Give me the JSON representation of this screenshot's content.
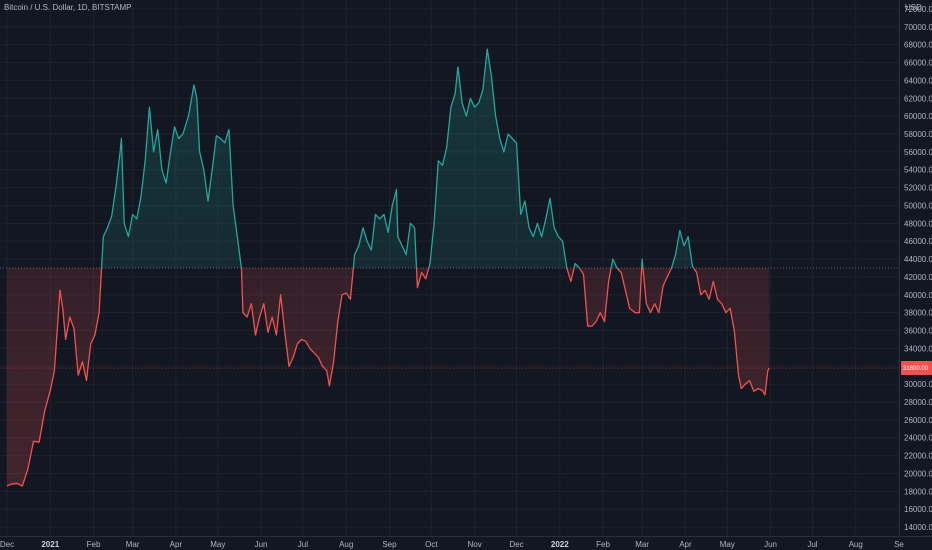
{
  "header": {
    "title": "Bitcoin / U.S. Dollar, 1D, BITSTAMP",
    "currency": "USD"
  },
  "colors": {
    "background": "#131722",
    "above": "#26a69a",
    "below": "#ef5350",
    "grid": "#1e222d",
    "axis_text": "#b2b5be"
  },
  "chart_data": {
    "type": "line",
    "y_axis": {
      "min": 13000,
      "max": 73000,
      "ticks": [
        14000,
        16000,
        18000,
        20000,
        22000,
        24000,
        26000,
        28000,
        30000,
        32000,
        34000,
        36000,
        38000,
        40000,
        42000,
        44000,
        46000,
        48000,
        50000,
        52000,
        54000,
        56000,
        58000,
        60000,
        62000,
        64000,
        66000,
        68000,
        70000,
        72000
      ],
      "tick_labels": [
        "14000.00",
        "16000.00",
        "18000.00",
        "20000.00",
        "22000.00",
        "24000.00",
        "26000.00",
        "28000.00",
        "30000.00",
        "32000.00",
        "34000.00",
        "36000.00",
        "38000.00",
        "40000.00",
        "42000.00",
        "44000.00",
        "46000.00",
        "48000.00",
        "50000.00",
        "52000.00",
        "54000.00",
        "56000.00",
        "58000.00",
        "60000.00",
        "62000.00",
        "64000.00",
        "66000.00",
        "68000.00",
        "70000.00",
        "72000.00"
      ]
    },
    "x_axis": {
      "labels": [
        {
          "text": "Dec",
          "date": "2020-12-01",
          "bold": false
        },
        {
          "text": "2021",
          "date": "2021-01-01",
          "bold": true
        },
        {
          "text": "Feb",
          "date": "2021-02-01",
          "bold": false
        },
        {
          "text": "Mar",
          "date": "2021-03-01",
          "bold": false
        },
        {
          "text": "Apr",
          "date": "2021-04-01",
          "bold": false
        },
        {
          "text": "May",
          "date": "2021-05-01",
          "bold": false
        },
        {
          "text": "Jun",
          "date": "2021-06-01",
          "bold": false
        },
        {
          "text": "Jul",
          "date": "2021-07-01",
          "bold": false
        },
        {
          "text": "Aug",
          "date": "2021-08-01",
          "bold": false
        },
        {
          "text": "Sep",
          "date": "2021-09-01",
          "bold": false
        },
        {
          "text": "Oct",
          "date": "2021-10-01",
          "bold": false
        },
        {
          "text": "Nov",
          "date": "2021-11-01",
          "bold": false
        },
        {
          "text": "Dec",
          "date": "2021-12-01",
          "bold": false
        },
        {
          "text": "2022",
          "date": "2022-01-01",
          "bold": true
        },
        {
          "text": "Feb",
          "date": "2022-02-01",
          "bold": false
        },
        {
          "text": "Mar",
          "date": "2022-03-01",
          "bold": false
        },
        {
          "text": "Apr",
          "date": "2022-04-01",
          "bold": false
        },
        {
          "text": "May",
          "date": "2022-05-01",
          "bold": false
        },
        {
          "text": "Jun",
          "date": "2022-06-01",
          "bold": false
        },
        {
          "text": "Jul",
          "date": "2022-07-01",
          "bold": false
        },
        {
          "text": "Aug",
          "date": "2022-08-01",
          "bold": false
        },
        {
          "text": "Se",
          "date": "2022-09-01",
          "bold": false
        }
      ]
    },
    "baseline": 43000,
    "last_price": 31800,
    "series": [
      {
        "points": [
          [
            "2020-12-01",
            18600
          ],
          [
            "2020-12-04",
            18800
          ],
          [
            "2020-12-08",
            18900
          ],
          [
            "2020-12-12",
            18600
          ],
          [
            "2020-12-16",
            20500
          ],
          [
            "2020-12-20",
            23600
          ],
          [
            "2020-12-24",
            23500
          ],
          [
            "2020-12-28",
            27000
          ],
          [
            "2021-01-01",
            29300
          ],
          [
            "2021-01-04",
            31500
          ],
          [
            "2021-01-08",
            40500
          ],
          [
            "2021-01-10",
            38400
          ],
          [
            "2021-01-12",
            35000
          ],
          [
            "2021-01-15",
            37500
          ],
          [
            "2021-01-18",
            36200
          ],
          [
            "2021-01-21",
            31000
          ],
          [
            "2021-01-24",
            32500
          ],
          [
            "2021-01-27",
            30400
          ],
          [
            "2021-01-30",
            34500
          ],
          [
            "2021-02-02",
            35500
          ],
          [
            "2021-02-05",
            38000
          ],
          [
            "2021-02-08",
            46500
          ],
          [
            "2021-02-11",
            47500
          ],
          [
            "2021-02-14",
            48800
          ],
          [
            "2021-02-17",
            52000
          ],
          [
            "2021-02-20",
            56000
          ],
          [
            "2021-02-21",
            57500
          ],
          [
            "2021-02-23",
            48000
          ],
          [
            "2021-02-26",
            46500
          ],
          [
            "2021-03-01",
            49000
          ],
          [
            "2021-03-04",
            48500
          ],
          [
            "2021-03-07",
            51000
          ],
          [
            "2021-03-10",
            55000
          ],
          [
            "2021-03-13",
            61000
          ],
          [
            "2021-03-16",
            56000
          ],
          [
            "2021-03-19",
            58500
          ],
          [
            "2021-03-22",
            54000
          ],
          [
            "2021-03-25",
            52500
          ],
          [
            "2021-03-28",
            55800
          ],
          [
            "2021-03-31",
            58800
          ],
          [
            "2021-04-03",
            57500
          ],
          [
            "2021-04-06",
            58000
          ],
          [
            "2021-04-10",
            60000
          ],
          [
            "2021-04-14",
            63500
          ],
          [
            "2021-04-16",
            62000
          ],
          [
            "2021-04-18",
            56000
          ],
          [
            "2021-04-21",
            54000
          ],
          [
            "2021-04-24",
            50500
          ],
          [
            "2021-04-27",
            54000
          ],
          [
            "2021-04-30",
            57800
          ],
          [
            "2021-05-03",
            57500
          ],
          [
            "2021-05-06",
            57000
          ],
          [
            "2021-05-09",
            58500
          ],
          [
            "2021-05-12",
            50000
          ],
          [
            "2021-05-15",
            46500
          ],
          [
            "2021-05-18",
            42900
          ],
          [
            "2021-05-19",
            38000
          ],
          [
            "2021-05-22",
            37500
          ],
          [
            "2021-05-25",
            39000
          ],
          [
            "2021-05-28",
            35500
          ],
          [
            "2021-05-31",
            37500
          ],
          [
            "2021-06-03",
            39000
          ],
          [
            "2021-06-06",
            35800
          ],
          [
            "2021-06-09",
            37500
          ],
          [
            "2021-06-12",
            35500
          ],
          [
            "2021-06-15",
            40000
          ],
          [
            "2021-06-18",
            35800
          ],
          [
            "2021-06-21",
            32000
          ],
          [
            "2021-06-24",
            33000
          ],
          [
            "2021-06-27",
            34500
          ],
          [
            "2021-06-30",
            35000
          ],
          [
            "2021-07-03",
            34800
          ],
          [
            "2021-07-06",
            34000
          ],
          [
            "2021-07-09",
            33500
          ],
          [
            "2021-07-12",
            33000
          ],
          [
            "2021-07-15",
            32000
          ],
          [
            "2021-07-18",
            31500
          ],
          [
            "2021-07-20",
            29800
          ],
          [
            "2021-07-23",
            32500
          ],
          [
            "2021-07-26",
            37000
          ],
          [
            "2021-07-29",
            40000
          ],
          [
            "2021-08-01",
            40200
          ],
          [
            "2021-08-04",
            39500
          ],
          [
            "2021-08-07",
            44500
          ],
          [
            "2021-08-10",
            45500
          ],
          [
            "2021-08-13",
            47500
          ],
          [
            "2021-08-16",
            46000
          ],
          [
            "2021-08-19",
            45000
          ],
          [
            "2021-08-22",
            49000
          ],
          [
            "2021-08-25",
            48500
          ],
          [
            "2021-08-28",
            49000
          ],
          [
            "2021-08-31",
            47000
          ],
          [
            "2021-09-03",
            50000
          ],
          [
            "2021-09-06",
            51800
          ],
          [
            "2021-09-07",
            46500
          ],
          [
            "2021-09-10",
            45500
          ],
          [
            "2021-09-13",
            44500
          ],
          [
            "2021-09-16",
            48000
          ],
          [
            "2021-09-19",
            47500
          ],
          [
            "2021-09-21",
            40800
          ],
          [
            "2021-09-24",
            42500
          ],
          [
            "2021-09-27",
            41800
          ],
          [
            "2021-09-30",
            43500
          ],
          [
            "2021-10-03",
            48000
          ],
          [
            "2021-10-06",
            55000
          ],
          [
            "2021-10-09",
            54500
          ],
          [
            "2021-10-12",
            56500
          ],
          [
            "2021-10-15",
            61000
          ],
          [
            "2021-10-18",
            62500
          ],
          [
            "2021-10-20",
            65500
          ],
          [
            "2021-10-23",
            61500
          ],
          [
            "2021-10-26",
            60000
          ],
          [
            "2021-10-29",
            62000
          ],
          [
            "2021-11-01",
            61000
          ],
          [
            "2021-11-04",
            61500
          ],
          [
            "2021-11-07",
            63000
          ],
          [
            "2021-11-10",
            67500
          ],
          [
            "2021-11-13",
            64500
          ],
          [
            "2021-11-16",
            60000
          ],
          [
            "2021-11-19",
            57500
          ],
          [
            "2021-11-22",
            56000
          ],
          [
            "2021-11-25",
            58000
          ],
          [
            "2021-11-28",
            57500
          ],
          [
            "2021-12-01",
            57000
          ],
          [
            "2021-12-04",
            49000
          ],
          [
            "2021-12-07",
            50500
          ],
          [
            "2021-12-10",
            47500
          ],
          [
            "2021-12-13",
            46500
          ],
          [
            "2021-12-16",
            48000
          ],
          [
            "2021-12-19",
            46500
          ],
          [
            "2021-12-22",
            48500
          ],
          [
            "2021-12-25",
            50800
          ],
          [
            "2021-12-28",
            47500
          ],
          [
            "2021-12-31",
            46500
          ],
          [
            "2022-01-03",
            46000
          ],
          [
            "2022-01-06",
            43000
          ],
          [
            "2022-01-09",
            41500
          ],
          [
            "2022-01-12",
            43500
          ],
          [
            "2022-01-15",
            43000
          ],
          [
            "2022-01-18",
            42300
          ],
          [
            "2022-01-21",
            36500
          ],
          [
            "2022-01-24",
            36500
          ],
          [
            "2022-01-27",
            37000
          ],
          [
            "2022-01-30",
            38000
          ],
          [
            "2022-02-02",
            37000
          ],
          [
            "2022-02-05",
            41500
          ],
          [
            "2022-02-08",
            44000
          ],
          [
            "2022-02-11",
            43000
          ],
          [
            "2022-02-14",
            42500
          ],
          [
            "2022-02-17",
            40500
          ],
          [
            "2022-02-20",
            38500
          ],
          [
            "2022-02-24",
            38000
          ],
          [
            "2022-02-27",
            38000
          ],
          [
            "2022-03-01",
            44000
          ],
          [
            "2022-03-04",
            39000
          ],
          [
            "2022-03-07",
            38000
          ],
          [
            "2022-03-10",
            39000
          ],
          [
            "2022-03-13",
            38000
          ],
          [
            "2022-03-16",
            41000
          ],
          [
            "2022-03-19",
            42000
          ],
          [
            "2022-03-22",
            43000
          ],
          [
            "2022-03-25",
            44500
          ],
          [
            "2022-03-28",
            47200
          ],
          [
            "2022-03-31",
            45500
          ],
          [
            "2022-04-03",
            46500
          ],
          [
            "2022-04-06",
            43200
          ],
          [
            "2022-04-09",
            42500
          ],
          [
            "2022-04-12",
            40000
          ],
          [
            "2022-04-15",
            40500
          ],
          [
            "2022-04-18",
            39500
          ],
          [
            "2022-04-21",
            41500
          ],
          [
            "2022-04-24",
            39500
          ],
          [
            "2022-04-27",
            39000
          ],
          [
            "2022-04-30",
            38000
          ],
          [
            "2022-05-03",
            38500
          ],
          [
            "2022-05-06",
            36000
          ],
          [
            "2022-05-09",
            31000
          ],
          [
            "2022-05-11",
            29500
          ],
          [
            "2022-05-14",
            30000
          ],
          [
            "2022-05-17",
            30400
          ],
          [
            "2022-05-20",
            29200
          ],
          [
            "2022-05-23",
            29500
          ],
          [
            "2022-05-26",
            29300
          ],
          [
            "2022-05-28",
            28800
          ],
          [
            "2022-05-30",
            31500
          ],
          [
            "2022-05-31",
            31800
          ]
        ]
      }
    ]
  }
}
